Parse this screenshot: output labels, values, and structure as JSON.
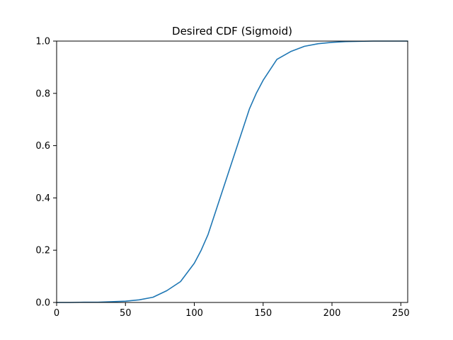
{
  "chart_data": {
    "type": "line",
    "title": "Desired CDF (Sigmoid)",
    "xlabel": "",
    "ylabel": "",
    "xlim": [
      0,
      255
    ],
    "ylim": [
      0.0,
      1.0
    ],
    "x_ticks": [
      0,
      50,
      100,
      150,
      200,
      250
    ],
    "x_tick_labels": [
      "0",
      "50",
      "100",
      "150",
      "200",
      "250"
    ],
    "y_ticks": [
      0.0,
      0.2,
      0.4,
      0.6,
      0.8,
      1.0
    ],
    "y_tick_labels": [
      "0.0",
      "0.2",
      "0.4",
      "0.6",
      "0.8",
      "1.0"
    ],
    "grid": false,
    "series": [
      {
        "color": "#1f77b4",
        "x": [
          0,
          10,
          20,
          30,
          40,
          50,
          60,
          70,
          80,
          90,
          100,
          105,
          110,
          115,
          120,
          125,
          130,
          135,
          140,
          145,
          150,
          155,
          160,
          170,
          180,
          190,
          200,
          210,
          220,
          230,
          240,
          250,
          255
        ],
        "y": [
          0.0,
          0.0,
          0.001,
          0.001,
          0.003,
          0.005,
          0.01,
          0.02,
          0.045,
          0.08,
          0.15,
          0.2,
          0.26,
          0.34,
          0.42,
          0.5,
          0.58,
          0.66,
          0.74,
          0.8,
          0.85,
          0.89,
          0.93,
          0.96,
          0.98,
          0.99,
          0.995,
          0.998,
          0.999,
          1.0,
          1.0,
          1.0,
          1.0
        ]
      }
    ]
  }
}
